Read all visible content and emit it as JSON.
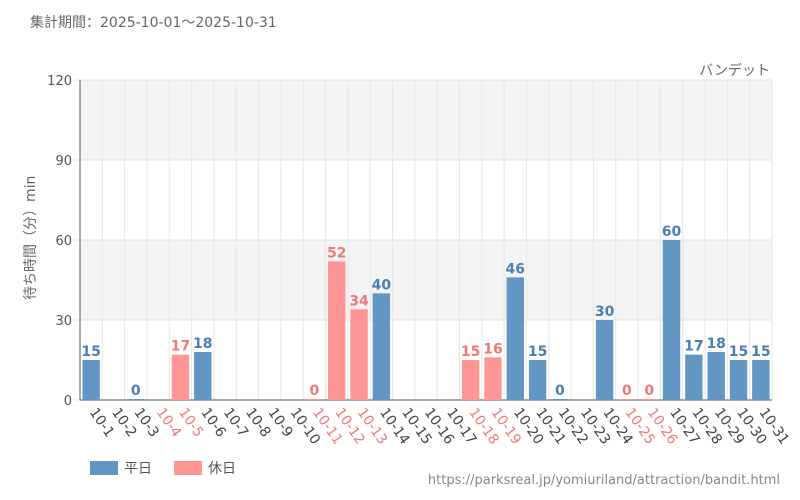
{
  "period_label": "集計期間：2025-10-01～2025-10-31",
  "source_url": "https://parksreal.jp/yomiuriland/attraction/bandit.html",
  "legend": [
    {
      "label": "平日",
      "color": "#6496c3"
    },
    {
      "label": "休日",
      "color": "#ff9696"
    }
  ],
  "chart_data": {
    "type": "bar",
    "title": "バンデット",
    "ylabel": "待ち時間（分）min",
    "xlabel": "",
    "ylim": [
      0,
      120
    ],
    "yticks": [
      0,
      30,
      60,
      90,
      120
    ],
    "categories": [
      "10-1",
      "10-2",
      "10-3",
      "10-4",
      "10-5",
      "10-6",
      "10-7",
      "10-8",
      "10-9",
      "10-10",
      "10-11",
      "10-12",
      "10-13",
      "10-14",
      "10-15",
      "10-16",
      "10-17",
      "10-18",
      "10-19",
      "10-20",
      "10-21",
      "10-22",
      "10-23",
      "10-24",
      "10-25",
      "10-26",
      "10-27",
      "10-28",
      "10-29",
      "10-30",
      "10-31"
    ],
    "values": [
      15,
      null,
      0,
      null,
      17,
      18,
      null,
      null,
      null,
      null,
      0,
      52,
      34,
      40,
      null,
      null,
      null,
      15,
      16,
      46,
      15,
      0,
      null,
      30,
      0,
      0,
      60,
      17,
      18,
      15,
      15
    ],
    "day_type": [
      "平日",
      "平日",
      "平日",
      "休日",
      "休日",
      "平日",
      "平日",
      "平日",
      "平日",
      "平日",
      "休日",
      "休日",
      "休日",
      "平日",
      "平日",
      "平日",
      "平日",
      "休日",
      "休日",
      "平日",
      "平日",
      "平日",
      "平日",
      "平日",
      "休日",
      "休日",
      "平日",
      "平日",
      "平日",
      "平日",
      "平日"
    ],
    "colors": {
      "平日": "#6496c3",
      "休日": "#ff9696"
    },
    "label_colors": {
      "平日": "#4a7fb0",
      "休日": "#f07878"
    },
    "tick_label_colors": {
      "平日": "#444444",
      "休日": "#f07878"
    }
  }
}
